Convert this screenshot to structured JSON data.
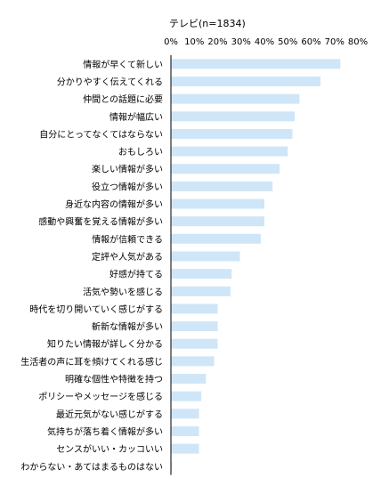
{
  "chart_data": {
    "type": "bar",
    "orientation": "horizontal",
    "title": "テレビ(n=1834)",
    "xlim": [
      0,
      80
    ],
    "x_ticks": [
      "0%",
      "10%",
      "20%",
      "30%",
      "40%",
      "50%",
      "60%",
      "70%",
      "80%"
    ],
    "categories": [
      "情報が早くて新しい",
      "分かりやすく伝えてくれる",
      "仲間との話題に必要",
      "情報が幅広い",
      "自分にとってなくてはならない",
      "おもしろい",
      "楽しい情報が多い",
      "役立つ情報が多い",
      "身近な内容の情報が多い",
      "感動や興奮を覚える情報が多い",
      "情報が信頼できる",
      "定評や人気がある",
      "好感が持てる",
      "活気や勢いを感じる",
      "時代を切り開いていく感じがする",
      "斬新な情報が多い",
      "知りたい情報が詳しく分かる",
      "生活者の声に耳を傾けてくれる感じ",
      "明確な個性や特徴を持つ",
      "ポリシーやメッセージを感じる",
      "最近元気がない感じがする",
      "気持ちが落ち着く情報が多い",
      "センスがいい・カッコいい",
      "わからない・あてはまるものはない"
    ],
    "values": [
      72.5,
      64,
      55,
      53,
      52,
      50,
      46.5,
      43.5,
      40,
      40,
      38.5,
      29.5,
      26,
      25.5,
      20,
      20,
      20,
      18.5,
      15,
      13,
      12,
      12,
      12,
      0.5
    ],
    "bar_color": "#cfe6f8",
    "bar_border_color": "#6fa9d8",
    "grid": false,
    "legend": "none"
  }
}
